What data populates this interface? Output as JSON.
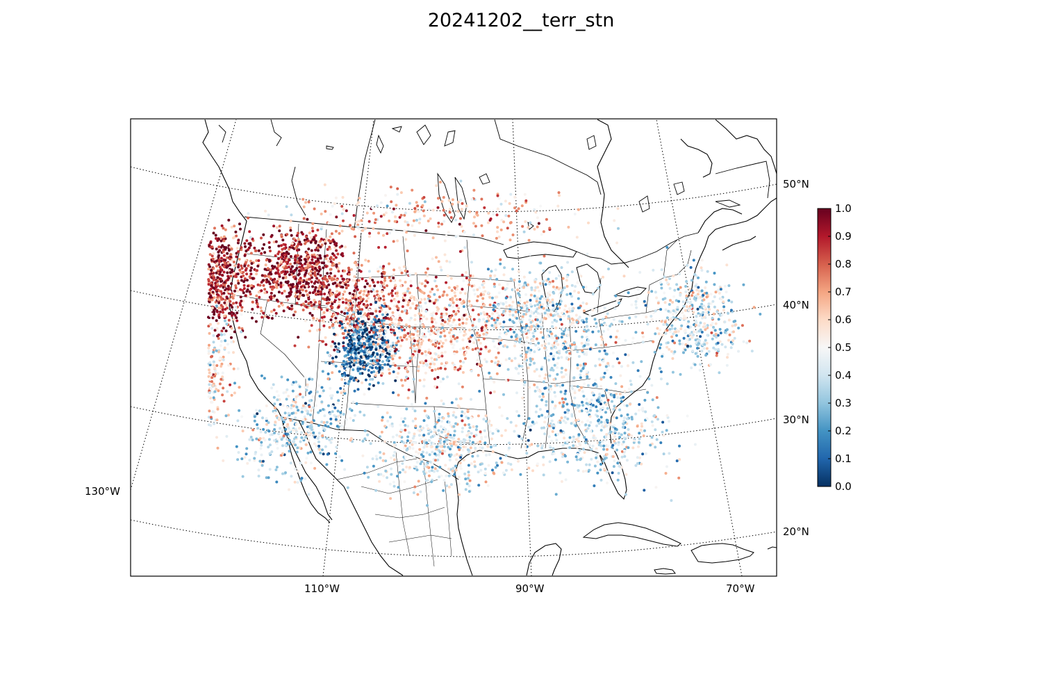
{
  "title": "20241202__terr_stn",
  "map": {
    "projection": "lambert-conformal",
    "lat_labels": [
      "50°N",
      "40°N",
      "30°N",
      "20°N"
    ],
    "lon_labels": [
      "130°W",
      "110°W",
      "90°W",
      "70°W"
    ],
    "gridlines": "dotted",
    "boundaries": [
      "coastlines",
      "countries",
      "states"
    ]
  },
  "colorbar": {
    "colormap": "RdBu_r",
    "ticks": [
      "0.0",
      "0.1",
      "0.2",
      "0.3",
      "0.4",
      "0.5",
      "0.6",
      "0.7",
      "0.8",
      "0.9",
      "1.0"
    ],
    "range": [
      0.0,
      1.0
    ],
    "colors": {
      "low": "#053061",
      "mid": "#f7f7f7",
      "high": "#67001f"
    }
  },
  "point_density_regions": [
    {
      "region": "pacific-northwest",
      "lon": -121,
      "lat": 45.5,
      "mean_value": 0.9
    },
    {
      "region": "idaho-montana",
      "lon": -113,
      "lat": 46,
      "mean_value": 0.92
    },
    {
      "region": "wyoming",
      "lon": -107,
      "lat": 43,
      "mean_value": 0.8
    },
    {
      "region": "colorado",
      "lon": -105.5,
      "lat": 39.5,
      "mean_value": 0.1
    },
    {
      "region": "california-coast",
      "lon": -121,
      "lat": 37,
      "mean_value": 0.55
    },
    {
      "region": "southwest",
      "lon": -111,
      "lat": 33,
      "mean_value": 0.4
    },
    {
      "region": "great-plains",
      "lon": -99,
      "lat": 41,
      "mean_value": 0.65
    },
    {
      "region": "texas",
      "lon": -98,
      "lat": 31,
      "mean_value": 0.45
    },
    {
      "region": "midwest",
      "lon": -88,
      "lat": 41,
      "mean_value": 0.45
    },
    {
      "region": "southeast",
      "lon": -84,
      "lat": 33,
      "mean_value": 0.4
    },
    {
      "region": "northeast",
      "lon": -74,
      "lat": 42,
      "mean_value": 0.45
    },
    {
      "region": "canada-south",
      "lon": -100,
      "lat": 50,
      "mean_value": 0.65
    }
  ]
}
